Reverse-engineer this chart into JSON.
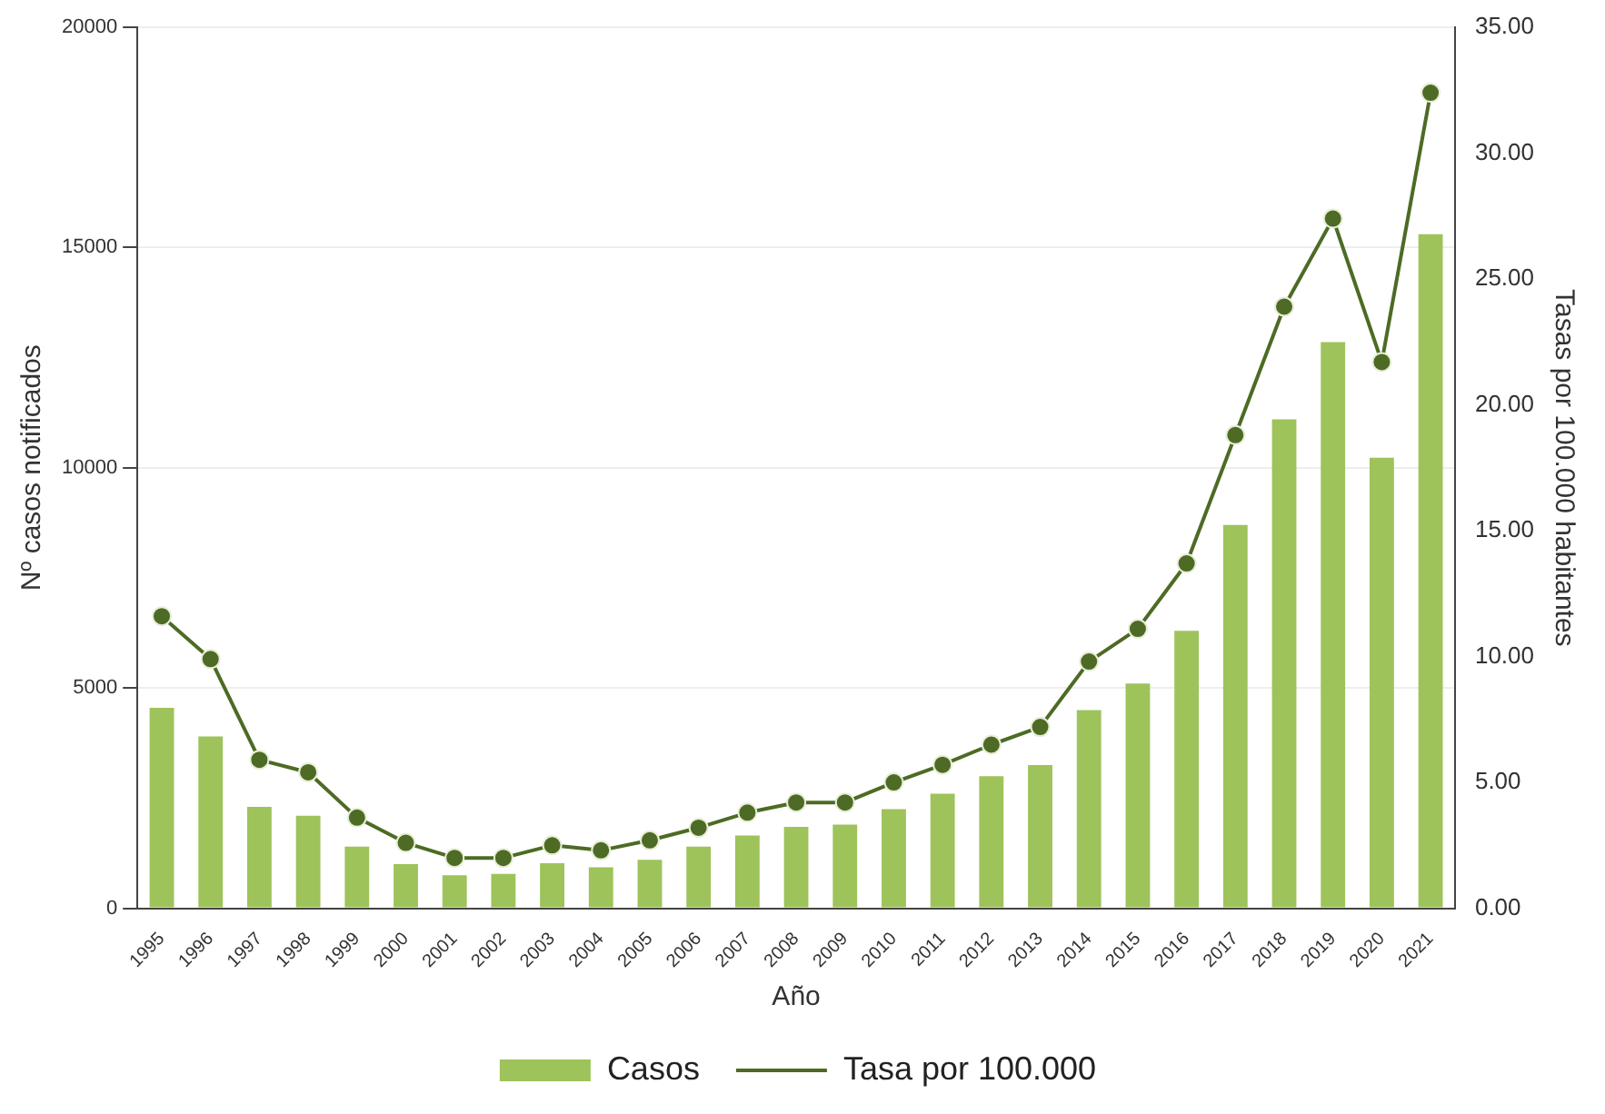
{
  "chart_data": {
    "type": "bar",
    "xlabel": "Año",
    "ylabel": "Nº casos notificados",
    "y2label": "Tasas por 100.000 habitantes",
    "categories": [
      "1995",
      "1996",
      "1997",
      "1998",
      "1999",
      "2000",
      "2001",
      "2002",
      "2003",
      "2004",
      "2005",
      "2006",
      "2007",
      "2008",
      "2009",
      "2010",
      "2011",
      "2012",
      "2013",
      "2014",
      "2015",
      "2016",
      "2017",
      "2018",
      "2019",
      "2020",
      "2021"
    ],
    "series": [
      {
        "name": "Casos",
        "color": "#9dc35a",
        "values": [
          4550,
          3900,
          2300,
          2100,
          1400,
          1000,
          750,
          780,
          1020,
          930,
          1100,
          1400,
          1650,
          1850,
          1900,
          2250,
          2600,
          3000,
          3250,
          4500,
          5100,
          6300,
          8700,
          11100,
          12850,
          10230,
          15300
        ]
      },
      {
        "name": "Tasa por 100.000",
        "type": "line",
        "axis": "y2",
        "color": "#4d6b24",
        "values": [
          11.6,
          9.9,
          5.9,
          5.4,
          3.6,
          2.6,
          2.0,
          2.0,
          2.5,
          2.3,
          2.7,
          3.2,
          3.8,
          4.2,
          4.2,
          5.0,
          5.7,
          6.5,
          7.2,
          9.8,
          11.1,
          13.7,
          18.8,
          23.9,
          27.4,
          21.7,
          32.4
        ]
      }
    ],
    "ylim": [
      0,
      20000
    ],
    "yticks": [
      0,
      5000,
      10000,
      15000,
      20000
    ],
    "y2lim": [
      0,
      35
    ],
    "y2ticks": [
      {
        "value": 0,
        "label": "0.00"
      },
      {
        "value": 5,
        "label": "5.00"
      },
      {
        "value": 10,
        "label": "10.00"
      },
      {
        "value": 15,
        "label": "15.00"
      },
      {
        "value": 20,
        "label": "20.00"
      },
      {
        "value": 25,
        "label": "25.00"
      },
      {
        "value": 30,
        "label": "30.00"
      },
      {
        "value": 35,
        "label": "35.00"
      }
    ],
    "grid": "y",
    "legend": "bottom",
    "marker": "circle",
    "line_style": "solid"
  }
}
